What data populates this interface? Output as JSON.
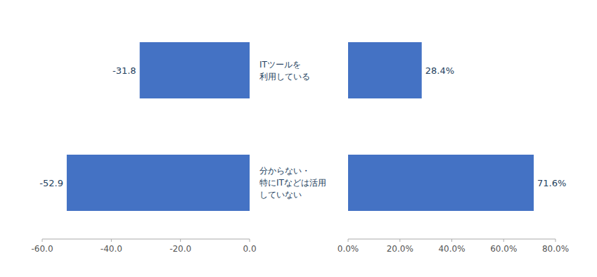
{
  "chart_data": [
    {
      "type": "bar",
      "orientation": "horizontal",
      "categories": [
        "ITツールを\n利用している",
        "分からない・\n特にITなどは活用\nしていない"
      ],
      "values": [
        -31.8,
        -52.9
      ],
      "color": "#4472C4",
      "xlim": [
        -60,
        0
      ],
      "xticks": [
        {
          "value": -60,
          "label": "-60.0"
        },
        {
          "value": -40,
          "label": "-40.0"
        },
        {
          "value": -20,
          "label": "-20.0"
        },
        {
          "value": 0,
          "label": "0.0"
        }
      ],
      "data_labels": true,
      "grid": false
    },
    {
      "type": "bar",
      "orientation": "horizontal",
      "values": [
        28.4,
        71.6
      ],
      "value_labels": [
        "28.4%",
        "71.6%"
      ],
      "color": "#4472C4",
      "xlim": [
        0,
        80
      ],
      "xticks": [
        {
          "value": 0,
          "label": "0.0%"
        },
        {
          "value": 20,
          "label": "20.0%"
        },
        {
          "value": 40,
          "label": "40.0%"
        },
        {
          "value": 60,
          "label": "60.0%"
        },
        {
          "value": 80,
          "label": "80.0%"
        }
      ],
      "data_labels": true,
      "grid": false
    }
  ]
}
